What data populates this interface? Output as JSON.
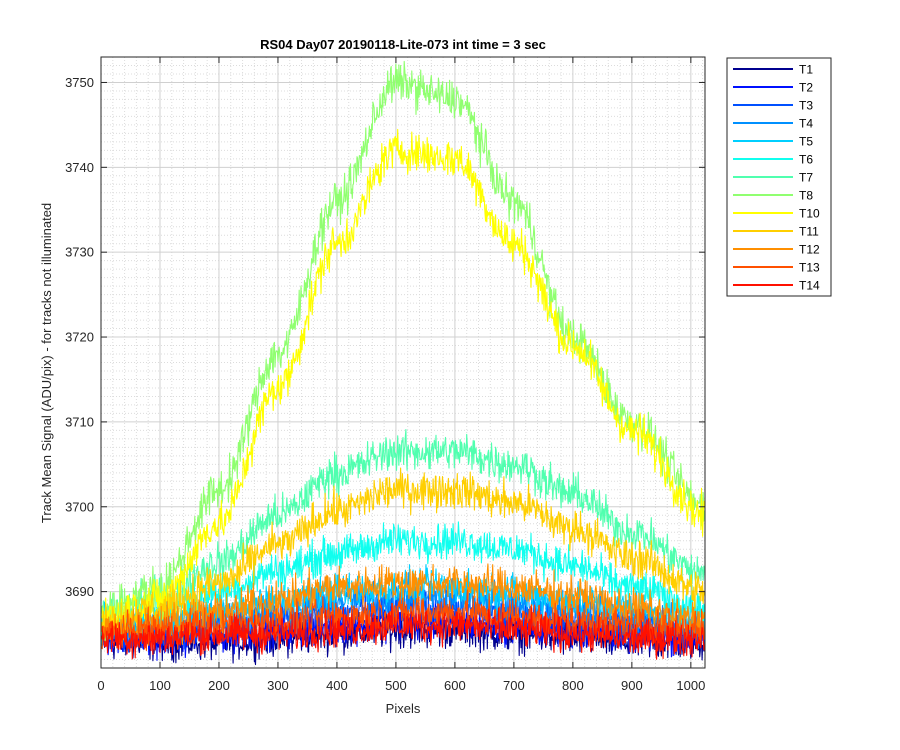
{
  "figure_background": "#ffffff",
  "chart_data": {
    "type": "line",
    "title": "RS04 Day07 20190118-Lite-073 int time = 3 sec",
    "xlabel": "Pixels",
    "ylabel": "Track Mean Signal (ADU/pix) - for tracks not illuminated",
    "xlim": [
      0,
      1024
    ],
    "ylim": [
      3681,
      3753
    ],
    "xticks": [
      0,
      100,
      200,
      300,
      400,
      500,
      600,
      700,
      800,
      900,
      1000
    ],
    "yticks": [
      3690,
      3700,
      3710,
      3720,
      3730,
      3740,
      3750
    ],
    "y_minor_step": 1,
    "grid": true,
    "minor_grid": true,
    "legend_position": "outside-top-right",
    "noise_note_values": "each track is a noisy per-pixel trace; envelope values below are the smoothed mean signal sampled every 100 pixels",
    "x": [
      0,
      100,
      200,
      300,
      400,
      500,
      600,
      700,
      800,
      900,
      1024
    ],
    "series": [
      {
        "name": "T1",
        "color": "#00008f",
        "noise": 1.8,
        "values": [
          3684,
          3684,
          3684,
          3684.5,
          3685,
          3685.5,
          3685.5,
          3685,
          3684.5,
          3684,
          3684
        ]
      },
      {
        "name": "T2",
        "color": "#0010ff",
        "noise": 1.8,
        "values": [
          3684.5,
          3684.5,
          3685,
          3685.5,
          3686,
          3686.5,
          3686.5,
          3686,
          3685.5,
          3685,
          3684.5
        ]
      },
      {
        "name": "T3",
        "color": "#0050ff",
        "noise": 1.8,
        "values": [
          3685,
          3685.5,
          3686,
          3687,
          3687.5,
          3688,
          3688,
          3687.5,
          3687,
          3686,
          3685.5
        ]
      },
      {
        "name": "T4",
        "color": "#0090ff",
        "noise": 1.8,
        "values": [
          3685.5,
          3686,
          3687,
          3688,
          3689,
          3689.5,
          3689.5,
          3689,
          3688,
          3687,
          3686
        ]
      },
      {
        "name": "T5",
        "color": "#00cfff",
        "noise": 1.8,
        "values": [
          3686,
          3686.5,
          3687.5,
          3689,
          3690,
          3690.5,
          3690.5,
          3690,
          3689,
          3688,
          3687
        ]
      },
      {
        "name": "T6",
        "color": "#10ffef",
        "noise": 1.8,
        "values": [
          3686.5,
          3688,
          3690,
          3692.5,
          3694.5,
          3696,
          3696,
          3695,
          3693,
          3690.5,
          3688
        ]
      },
      {
        "name": "T7",
        "color": "#50ffaf",
        "noise": 1.9,
        "values": [
          3687,
          3689.5,
          3693.5,
          3699,
          3704,
          3706.5,
          3706.5,
          3705,
          3701.5,
          3697,
          3692
        ]
      },
      {
        "name": "T8",
        "color": "#90ff70",
        "noise": 2.0,
        "values": [
          3688,
          3690.5,
          3702,
          3718,
          3736,
          3750,
          3748,
          3736,
          3720,
          3710,
          3700
        ]
      },
      {
        "name": "T10",
        "color": "#ffff00",
        "noise": 2.0,
        "values": [
          3687,
          3689,
          3698,
          3714,
          3731,
          3742,
          3741,
          3731,
          3719,
          3709,
          3699
        ]
      },
      {
        "name": "T11",
        "color": "#ffcf00",
        "noise": 1.9,
        "values": [
          3686.5,
          3688,
          3691,
          3695.5,
          3699.5,
          3702,
          3702,
          3700.5,
          3697.5,
          3694,
          3690
        ]
      },
      {
        "name": "T12",
        "color": "#ff8f00",
        "noise": 1.9,
        "values": [
          3685.5,
          3686.5,
          3687.5,
          3689,
          3690.5,
          3691,
          3691,
          3690.5,
          3689.5,
          3688,
          3686.5
        ]
      },
      {
        "name": "T13",
        "color": "#ff5000",
        "noise": 1.8,
        "values": [
          3685,
          3685.5,
          3686,
          3686.5,
          3687,
          3687.5,
          3687.5,
          3687,
          3686.5,
          3686,
          3685.5
        ]
      },
      {
        "name": "T14",
        "color": "#ff1000",
        "noise": 1.8,
        "values": [
          3684.5,
          3684.5,
          3685,
          3685,
          3685.5,
          3686,
          3686,
          3685.5,
          3685,
          3684.5,
          3684.5
        ]
      }
    ]
  }
}
